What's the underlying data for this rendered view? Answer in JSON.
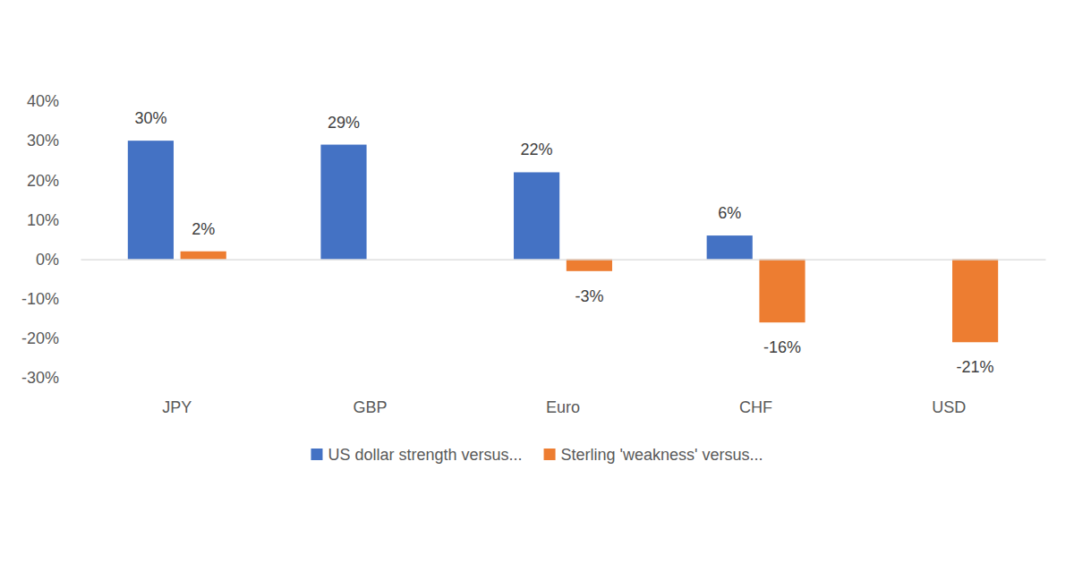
{
  "chart_data": {
    "type": "bar",
    "categories": [
      "JPY",
      "GBP",
      "Euro",
      "CHF",
      "USD"
    ],
    "series": [
      {
        "name": "US dollar strength versus...",
        "color": "#4472c4",
        "values": [
          30,
          29,
          22,
          6,
          null
        ],
        "value_labels": [
          "30%",
          "29%",
          "22%",
          "6%",
          null
        ]
      },
      {
        "name": "Sterling 'weakness' versus...",
        "color": "#ed7d31",
        "values": [
          2,
          null,
          -3,
          -16,
          -21
        ],
        "value_labels": [
          "2%",
          null,
          "-3%",
          "-16%",
          "-21%"
        ]
      }
    ],
    "ylim": [
      -30,
      40
    ],
    "yticks": [
      {
        "value": -30,
        "label": "-30%"
      },
      {
        "value": -20,
        "label": "-20%"
      },
      {
        "value": -10,
        "label": "-10%"
      },
      {
        "value": 0,
        "label": "0%"
      },
      {
        "value": 10,
        "label": "10%"
      },
      {
        "value": 20,
        "label": "20%"
      },
      {
        "value": 30,
        "label": "30%"
      },
      {
        "value": 40,
        "label": "40%"
      }
    ],
    "grid": false,
    "legend": "bottom",
    "data_labels": true
  }
}
